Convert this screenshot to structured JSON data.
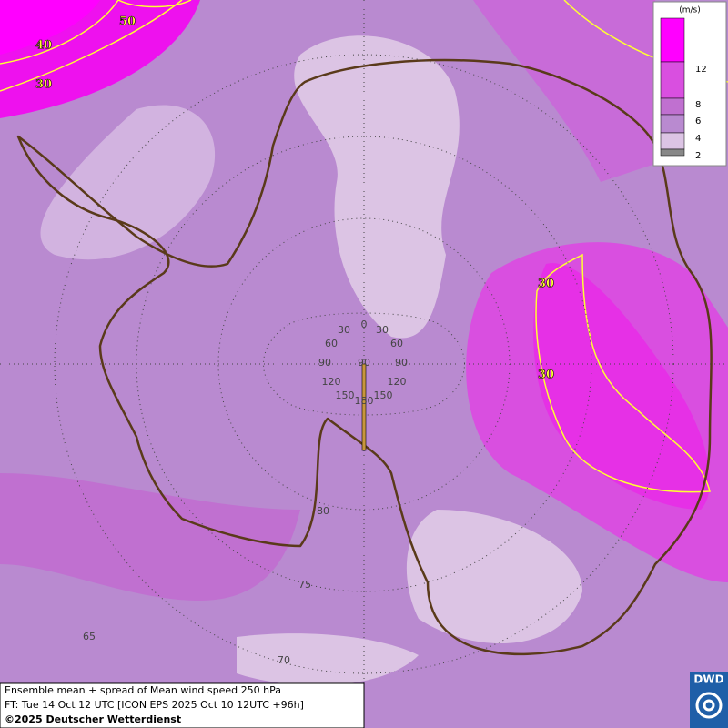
{
  "legend": {
    "unit": "(m/s)",
    "levels": [
      12,
      8,
      6,
      4,
      2
    ]
  },
  "contour_labels": [
    50,
    40,
    30,
    30,
    30
  ],
  "graticule": {
    "longitude_labels": [
      0,
      30,
      30,
      60,
      60,
      90,
      90,
      120,
      120,
      150,
      150,
      180
    ],
    "latitude_labels": [
      90,
      80,
      75,
      70,
      65
    ]
  },
  "caption": {
    "line1": "Ensemble mean + spread of Mean wind speed 250 hPa",
    "line2": "FT: Tue 14 Oct 12 UTC [ICON EPS 2025 Oct 10 12UTC +96h]",
    "line3": "©2025 Deutscher Wetterdienst"
  },
  "logo": "DWD"
}
